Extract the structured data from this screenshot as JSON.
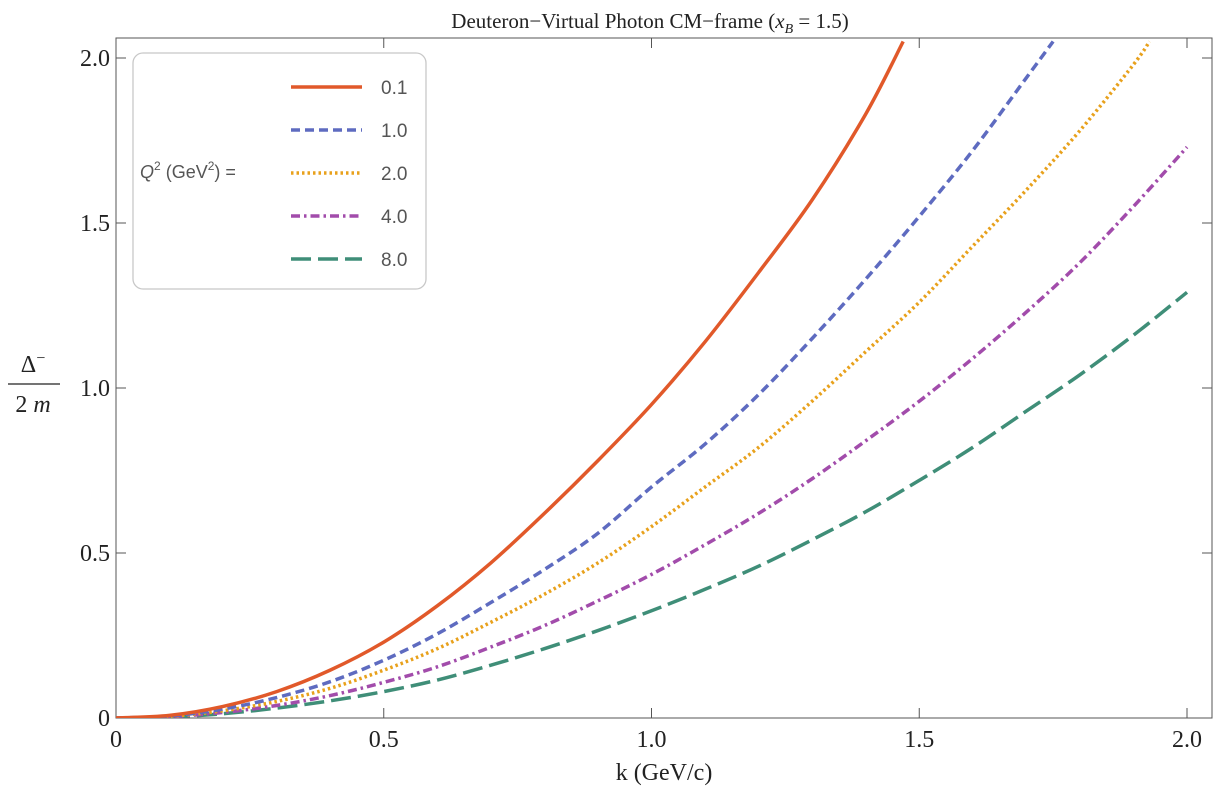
{
  "chart_data": {
    "type": "line",
    "title": {
      "prefix": "Deuteron−Virtual Photon CM−frame  (",
      "var": "x",
      "sub": "B",
      "suffix": " = 1.5)"
    },
    "xlabel": "k (GeV/c)",
    "ylabel": {
      "numerator": "Δ",
      "numerator_sup": "−",
      "denominator": "2 ",
      "denominator_var": "m"
    },
    "xlim": [
      0,
      2.05
    ],
    "ylim": [
      0,
      2.05
    ],
    "xticks": [
      {
        "v": 0,
        "label": "0"
      },
      {
        "v": 0.5,
        "label": "0.5"
      },
      {
        "v": 1.0,
        "label": "1.0"
      },
      {
        "v": 1.5,
        "label": "1.5"
      },
      {
        "v": 2.0,
        "label": "2.0"
      }
    ],
    "yticks": [
      {
        "v": 0,
        "label": "0"
      },
      {
        "v": 0.5,
        "label": "0.5"
      },
      {
        "v": 1.0,
        "label": "1.0"
      },
      {
        "v": 1.5,
        "label": "1.5"
      },
      {
        "v": 2.0,
        "label": "2.0"
      }
    ],
    "grid": false,
    "legend": {
      "placement": "top-left",
      "title": {
        "var": "Q",
        "sup1": "2",
        "mid": " (GeV",
        "sup2": "2",
        "end": ") ="
      }
    },
    "series": [
      {
        "name": "0.1",
        "color": "#E1592A",
        "dash": "solid",
        "x": [
          0,
          0.1,
          0.2,
          0.3,
          0.4,
          0.5,
          0.6,
          0.7,
          0.8,
          0.9,
          1.0,
          1.1,
          1.2,
          1.3,
          1.4,
          1.47
        ],
        "y": [
          0,
          0.008,
          0.035,
          0.08,
          0.145,
          0.23,
          0.34,
          0.47,
          0.62,
          0.78,
          0.95,
          1.14,
          1.35,
          1.57,
          1.83,
          2.05
        ]
      },
      {
        "name": "1.0",
        "color": "#5E6BC0",
        "dash": "dashed",
        "x": [
          0,
          0.1,
          0.2,
          0.3,
          0.4,
          0.5,
          0.6,
          0.7,
          0.8,
          0.9,
          1.0,
          1.1,
          1.2,
          1.3,
          1.4,
          1.5,
          1.6,
          1.7,
          1.75
        ],
        "y": [
          0,
          0.006,
          0.027,
          0.062,
          0.11,
          0.175,
          0.255,
          0.35,
          0.45,
          0.56,
          0.7,
          0.83,
          0.98,
          1.15,
          1.33,
          1.52,
          1.72,
          1.94,
          2.05
        ]
      },
      {
        "name": "2.0",
        "color": "#E8A11C",
        "dash": "dotted",
        "x": [
          0,
          0.1,
          0.2,
          0.3,
          0.4,
          0.5,
          0.6,
          0.7,
          0.8,
          0.9,
          1.0,
          1.1,
          1.2,
          1.3,
          1.4,
          1.5,
          1.6,
          1.7,
          1.8,
          1.9,
          1.93
        ],
        "y": [
          0,
          0.005,
          0.022,
          0.05,
          0.09,
          0.145,
          0.21,
          0.29,
          0.375,
          0.47,
          0.58,
          0.7,
          0.82,
          0.96,
          1.11,
          1.26,
          1.43,
          1.6,
          1.78,
          1.98,
          2.05
        ]
      },
      {
        "name": "4.0",
        "color": "#A24CAB",
        "dash": "dashdot",
        "x": [
          0,
          0.1,
          0.2,
          0.3,
          0.4,
          0.5,
          0.6,
          0.7,
          0.8,
          0.9,
          1.0,
          1.1,
          1.2,
          1.3,
          1.4,
          1.5,
          1.6,
          1.7,
          1.8,
          1.9,
          2.0
        ],
        "y": [
          0,
          0.004,
          0.017,
          0.038,
          0.068,
          0.108,
          0.155,
          0.215,
          0.28,
          0.355,
          0.435,
          0.525,
          0.62,
          0.725,
          0.84,
          0.96,
          1.09,
          1.23,
          1.38,
          1.55,
          1.73
        ]
      },
      {
        "name": "8.0",
        "color": "#3F8E78",
        "dash": "longdash",
        "x": [
          0,
          0.1,
          0.2,
          0.3,
          0.4,
          0.5,
          0.6,
          0.7,
          0.8,
          0.9,
          1.0,
          1.1,
          1.2,
          1.3,
          1.4,
          1.5,
          1.6,
          1.7,
          1.8,
          1.9,
          2.0
        ],
        "y": [
          0,
          0.003,
          0.013,
          0.03,
          0.052,
          0.08,
          0.115,
          0.16,
          0.21,
          0.265,
          0.325,
          0.39,
          0.46,
          0.54,
          0.625,
          0.72,
          0.82,
          0.93,
          1.04,
          1.16,
          1.29
        ]
      }
    ]
  }
}
